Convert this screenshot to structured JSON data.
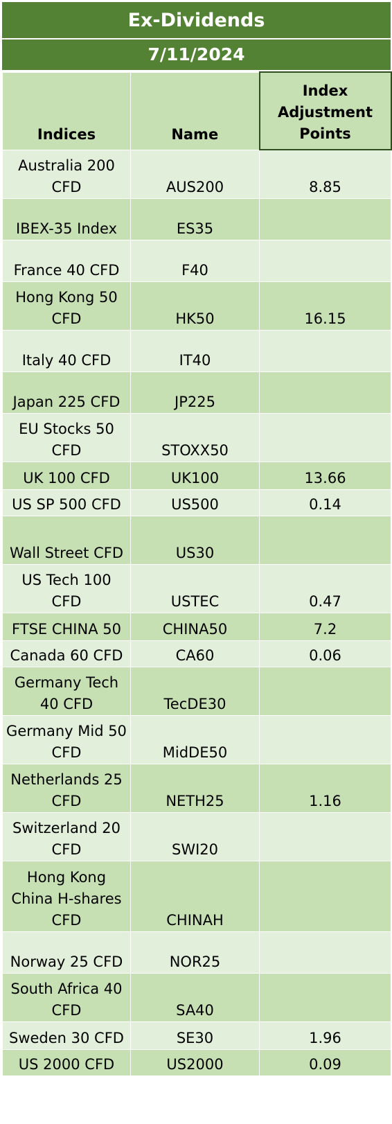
{
  "title": "Ex-Dividends",
  "date": "7/11/2024",
  "columns": {
    "indices": "Indices",
    "name": "Name",
    "points": "Index Adjustment Points"
  },
  "colors": {
    "banner": "#548235",
    "header": "#c6e0b4",
    "row_light": "#e2efda",
    "row_mid": "#c6e0b4"
  },
  "rows": [
    {
      "index": "Australia 200 CFD",
      "name": "AUS200",
      "points": "8.85"
    },
    {
      "index": "IBEX-35 Index",
      "name": "ES35",
      "points": ""
    },
    {
      "index": "France 40 CFD",
      "name": "F40",
      "points": ""
    },
    {
      "index": "Hong Kong 50 CFD",
      "name": "HK50",
      "points": "16.15"
    },
    {
      "index": "Italy 40 CFD",
      "name": "IT40",
      "points": ""
    },
    {
      "index": "Japan 225 CFD",
      "name": "JP225",
      "points": ""
    },
    {
      "index": "EU Stocks 50 CFD",
      "name": "STOXX50",
      "points": ""
    },
    {
      "index": "UK 100 CFD",
      "name": "UK100",
      "points": "13.66"
    },
    {
      "index": "US SP 500 CFD",
      "name": "US500",
      "points": "0.14"
    },
    {
      "index": "Wall Street CFD",
      "name": "US30",
      "points": ""
    },
    {
      "index": "US Tech 100 CFD",
      "name": "USTEC",
      "points": "0.47"
    },
    {
      "index": "FTSE CHINA 50",
      "name": "CHINA50",
      "points": "7.2"
    },
    {
      "index": "Canada 60 CFD",
      "name": "CA60",
      "points": "0.06"
    },
    {
      "index": "Germany Tech 40 CFD",
      "name": "TecDE30",
      "points": ""
    },
    {
      "index": "Germany Mid 50 CFD",
      "name": "MidDE50",
      "points": ""
    },
    {
      "index": "Netherlands 25 CFD",
      "name": "NETH25",
      "points": "1.16"
    },
    {
      "index": "Switzerland 20 CFD",
      "name": "SWI20",
      "points": ""
    },
    {
      "index": "Hong Kong China H-shares CFD",
      "name": "CHINAH",
      "points": ""
    },
    {
      "index": "Norway 25 CFD",
      "name": "NOR25",
      "points": ""
    },
    {
      "index": "South Africa 40 CFD",
      "name": "SA40",
      "points": ""
    },
    {
      "index": "Sweden 30 CFD",
      "name": "SE30",
      "points": "1.96"
    },
    {
      "index": "US 2000 CFD",
      "name": "US2000",
      "points": "0.09"
    }
  ]
}
